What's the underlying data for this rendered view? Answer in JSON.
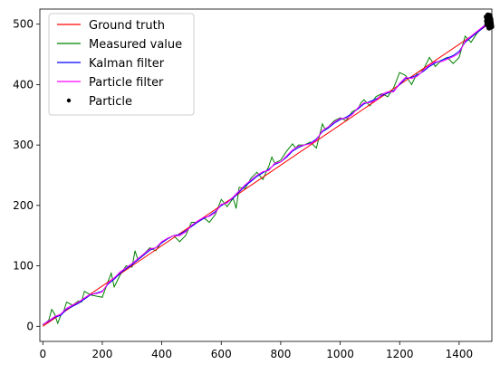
{
  "chart_data": {
    "type": "line",
    "title": "",
    "xlabel": "",
    "ylabel": "",
    "xlim": [
      -10,
      1510
    ],
    "ylim": [
      -25,
      525
    ],
    "xticks": [
      0,
      200,
      400,
      600,
      800,
      1000,
      1200,
      1400
    ],
    "yticks": [
      0,
      100,
      200,
      300,
      400,
      500
    ],
    "grid": false,
    "legend_position": "top-left",
    "series": [
      {
        "name": "Ground truth",
        "color": "#ff0000",
        "x": [
          0,
          1500
        ],
        "y": [
          0,
          500
        ]
      },
      {
        "name": "Measured value",
        "color": "#008000",
        "x": [
          0,
          20,
          30,
          40,
          50,
          60,
          70,
          80,
          100,
          120,
          130,
          140,
          160,
          180,
          200,
          220,
          230,
          240,
          260,
          280,
          300,
          310,
          320,
          340,
          360,
          380,
          400,
          420,
          440,
          460,
          480,
          500,
          520,
          540,
          560,
          580,
          600,
          620,
          640,
          650,
          660,
          680,
          700,
          720,
          740,
          760,
          770,
          780,
          800,
          820,
          840,
          850,
          860,
          880,
          900,
          920,
          940,
          950,
          960,
          980,
          1000,
          1020,
          1040,
          1060,
          1070,
          1080,
          1100,
          1120,
          1140,
          1160,
          1180,
          1200,
          1220,
          1240,
          1260,
          1280,
          1300,
          1320,
          1340,
          1360,
          1380,
          1400,
          1420,
          1440,
          1460,
          1480,
          1500
        ],
        "y": [
          2,
          10,
          28,
          20,
          5,
          18,
          25,
          40,
          35,
          42,
          40,
          58,
          52,
          50,
          48,
          75,
          88,
          65,
          85,
          100,
          98,
          125,
          110,
          120,
          130,
          125,
          140,
          145,
          150,
          140,
          150,
          172,
          172,
          180,
          172,
          185,
          210,
          198,
          212,
          195,
          230,
          228,
          245,
          255,
          243,
          265,
          280,
          270,
          275,
          290,
          302,
          295,
          300,
          300,
          305,
          295,
          335,
          325,
          330,
          340,
          345,
          340,
          355,
          360,
          370,
          375,
          365,
          380,
          385,
          380,
          395,
          420,
          415,
          400,
          420,
          425,
          445,
          430,
          440,
          445,
          435,
          445,
          480,
          470,
          485,
          495,
          505
        ]
      },
      {
        "name": "Kalman filter",
        "color": "#0000ff",
        "x": [
          0,
          20,
          40,
          60,
          80,
          100,
          120,
          140,
          160,
          180,
          200,
          220,
          240,
          260,
          280,
          300,
          320,
          340,
          360,
          380,
          400,
          420,
          440,
          460,
          480,
          500,
          520,
          540,
          560,
          580,
          600,
          620,
          640,
          660,
          680,
          700,
          720,
          740,
          760,
          780,
          800,
          820,
          840,
          860,
          880,
          900,
          920,
          940,
          960,
          980,
          1000,
          1020,
          1040,
          1060,
          1080,
          1100,
          1120,
          1140,
          1160,
          1180,
          1200,
          1220,
          1240,
          1260,
          1280,
          1300,
          1320,
          1340,
          1360,
          1380,
          1400,
          1420,
          1440,
          1460,
          1480,
          1500
        ],
        "y": [
          3,
          8,
          15,
          18,
          28,
          33,
          38,
          45,
          52,
          55,
          58,
          70,
          78,
          88,
          95,
          102,
          110,
          118,
          126,
          130,
          138,
          145,
          150,
          152,
          158,
          165,
          172,
          178,
          183,
          190,
          200,
          205,
          212,
          222,
          232,
          240,
          248,
          254,
          260,
          268,
          272,
          280,
          290,
          296,
          300,
          303,
          310,
          322,
          328,
          336,
          342,
          346,
          352,
          360,
          368,
          372,
          376,
          382,
          386,
          390,
          400,
          410,
          412,
          416,
          422,
          430,
          436,
          440,
          444,
          448,
          455,
          470,
          478,
          486,
          494,
          502
        ]
      },
      {
        "name": "Particle filter",
        "color": "#ff00ff",
        "x": [
          0,
          20,
          40,
          60,
          80,
          100,
          120,
          140,
          160,
          180,
          200,
          220,
          240,
          260,
          280,
          300,
          320,
          340,
          360,
          380,
          400,
          420,
          440,
          460,
          480,
          500,
          520,
          540,
          560,
          580,
          600,
          620,
          640,
          660,
          680,
          700,
          720,
          740,
          760,
          780,
          800,
          820,
          840,
          860,
          880,
          900,
          920,
          940,
          960,
          980,
          1000,
          1020,
          1040,
          1060,
          1080,
          1100,
          1120,
          1140,
          1160,
          1180,
          1200,
          1220,
          1240,
          1260,
          1280,
          1300,
          1320,
          1340,
          1360,
          1380,
          1400,
          1420,
          1440,
          1460,
          1480,
          1500
        ],
        "y": [
          3,
          9,
          16,
          20,
          30,
          35,
          40,
          47,
          53,
          54,
          57,
          72,
          80,
          90,
          97,
          104,
          112,
          120,
          128,
          130,
          140,
          146,
          150,
          150,
          156,
          167,
          174,
          180,
          182,
          188,
          202,
          204,
          214,
          224,
          234,
          242,
          250,
          256,
          258,
          270,
          272,
          282,
          292,
          298,
          300,
          302,
          308,
          324,
          330,
          338,
          344,
          344,
          350,
          362,
          370,
          370,
          374,
          384,
          388,
          388,
          402,
          412,
          410,
          414,
          424,
          432,
          438,
          438,
          442,
          446,
          452,
          472,
          480,
          488,
          496,
          504
        ]
      }
    ],
    "particles": {
      "name": "Particle",
      "color": "#000000",
      "points": [
        [
          1492,
          512
        ],
        [
          1496,
          504
        ],
        [
          1498,
          498
        ],
        [
          1500,
          510
        ],
        [
          1502,
          502
        ],
        [
          1504,
          496
        ],
        [
          1506,
          508
        ],
        [
          1508,
          500
        ],
        [
          1494,
          500
        ],
        [
          1497,
          515
        ],
        [
          1503,
          514
        ],
        [
          1499,
          506
        ],
        [
          1505,
          498
        ],
        [
          1501,
          494
        ],
        [
          1507,
          504
        ],
        [
          1495,
          508
        ],
        [
          1509,
          496
        ],
        [
          1493,
          505
        ],
        [
          1504,
          511
        ],
        [
          1498,
          502
        ]
      ]
    },
    "legend": [
      "Ground truth",
      "Measured value",
      "Kalman filter",
      "Particle filter",
      "Particle"
    ]
  }
}
